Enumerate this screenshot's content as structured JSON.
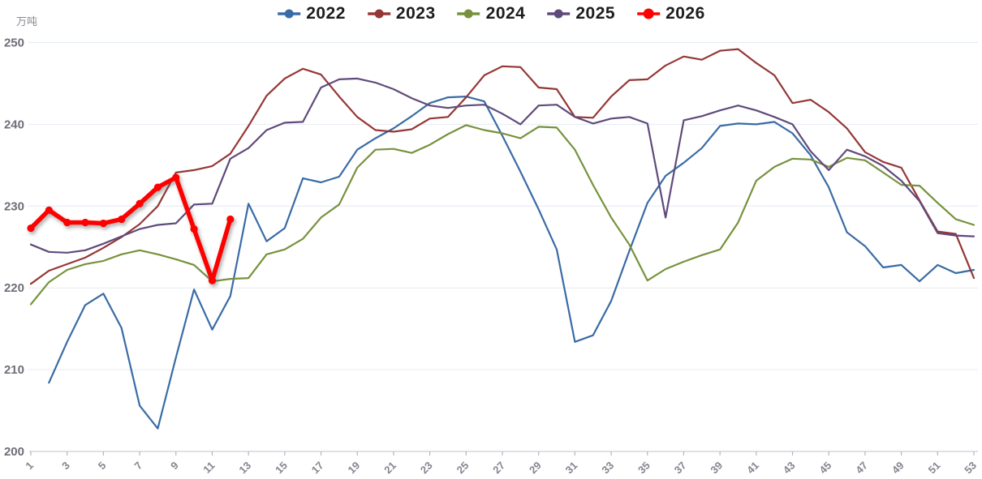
{
  "chart_data": {
    "type": "line",
    "unit": "万吨",
    "title": "",
    "xlabel": "",
    "ylabel": "万吨",
    "xlim": [
      1,
      53
    ],
    "ylim": [
      200,
      250
    ],
    "grid": true,
    "legend_position": "top-center",
    "x_ticks": [
      1,
      3,
      5,
      7,
      9,
      11,
      13,
      15,
      17,
      19,
      21,
      23,
      25,
      27,
      29,
      31,
      33,
      35,
      37,
      39,
      41,
      43,
      45,
      47,
      49,
      51,
      53
    ],
    "y_ticks": [
      200,
      210,
      220,
      230,
      240,
      250
    ],
    "series": [
      {
        "name": "2022",
        "color": "#3A6BA5",
        "start_week": 2,
        "line_width": 2.2,
        "marker": false,
        "shadow": false,
        "values": [
          208.4,
          213.4,
          217.9,
          219.3,
          215.1,
          205.6,
          202.8,
          211.5,
          219.8,
          214.9,
          219.0,
          230.3,
          225.7,
          227.3,
          233.4,
          232.9,
          233.6,
          236.9,
          238.3,
          239.5,
          241.0,
          242.6,
          243.3,
          243.4,
          242.8,
          238.6,
          234.2,
          229.6,
          224.7,
          213.4,
          214.2,
          218.4,
          224.5,
          230.4,
          233.7,
          235.3,
          237.1,
          239.8,
          240.1,
          240.0,
          240.3,
          238.9,
          236.2,
          232.3,
          226.8,
          225.1,
          222.5,
          222.8,
          220.8,
          222.8,
          221.8,
          222.2
        ]
      },
      {
        "name": "2023",
        "color": "#953735",
        "start_week": 1,
        "line_width": 2.2,
        "marker": false,
        "shadow": false,
        "values": [
          220.5,
          222.1,
          222.9,
          223.7,
          224.9,
          226.2,
          227.8,
          230.0,
          234.1,
          234.4,
          234.9,
          236.4,
          239.8,
          243.5,
          245.6,
          246.8,
          246.1,
          243.4,
          240.9,
          239.3,
          239.1,
          239.4,
          240.7,
          240.9,
          243.3,
          246.0,
          247.1,
          247.0,
          244.5,
          244.3,
          240.9,
          240.8,
          243.4,
          245.4,
          245.5,
          247.2,
          248.3,
          247.9,
          249.0,
          249.2,
          247.5,
          246.0,
          242.6,
          243.0,
          241.5,
          239.5,
          236.6,
          235.4,
          234.7,
          230.7,
          226.9,
          226.6,
          221.2
        ]
      },
      {
        "name": "2024",
        "color": "#76923C",
        "start_week": 1,
        "line_width": 2.2,
        "marker": false,
        "shadow": false,
        "values": [
          218.0,
          220.7,
          222.2,
          222.9,
          223.3,
          224.1,
          224.6,
          224.1,
          223.5,
          222.8,
          220.8,
          221.1,
          221.2,
          224.1,
          224.7,
          226.0,
          228.6,
          230.2,
          234.7,
          236.9,
          237.0,
          236.5,
          237.5,
          238.8,
          239.9,
          239.3,
          238.9,
          238.3,
          239.7,
          239.6,
          236.9,
          232.6,
          228.6,
          225.3,
          220.9,
          222.3,
          223.2,
          224.0,
          224.7,
          228.0,
          233.1,
          234.8,
          235.8,
          235.7,
          234.8,
          235.9,
          235.6,
          234.1,
          232.6,
          232.5,
          230.4,
          228.4,
          227.7
        ]
      },
      {
        "name": "2025",
        "color": "#604A7B",
        "start_week": 1,
        "line_width": 2.2,
        "marker": false,
        "shadow": false,
        "values": [
          225.3,
          224.4,
          224.3,
          224.6,
          225.4,
          226.3,
          227.2,
          227.7,
          227.9,
          230.2,
          230.3,
          235.8,
          237.1,
          239.3,
          240.2,
          240.3,
          244.5,
          245.5,
          245.6,
          245.1,
          244.3,
          243.2,
          242.3,
          242.0,
          242.3,
          242.4,
          241.3,
          240.0,
          242.3,
          242.4,
          240.9,
          240.1,
          240.7,
          240.9,
          240.1,
          228.6,
          240.5,
          241.0,
          241.7,
          242.3,
          241.7,
          240.9,
          240.0,
          236.7,
          234.4,
          236.9,
          236.1,
          234.9,
          233.1,
          230.6,
          226.7,
          226.4,
          226.3
        ]
      },
      {
        "name": "2026",
        "color": "#FF0000",
        "start_week": 1,
        "line_width": 5.5,
        "marker": true,
        "shadow": true,
        "values": [
          227.3,
          229.5,
          228.0,
          228.0,
          227.9,
          228.4,
          230.3,
          232.3,
          233.5,
          227.2,
          220.9,
          228.4
        ]
      }
    ]
  }
}
